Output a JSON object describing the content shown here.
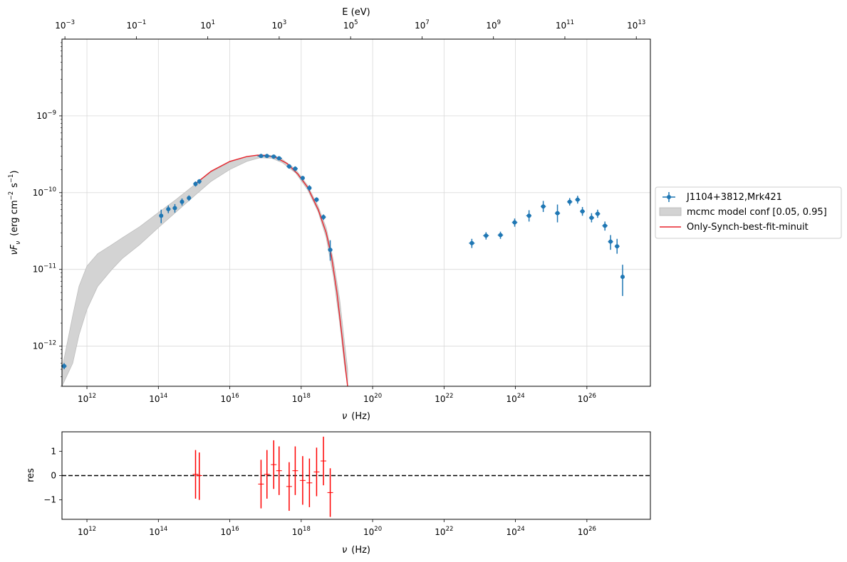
{
  "chart_data": [
    {
      "type": "scatter",
      "x_scale": "log",
      "y_scale": "log",
      "xlabel_symbol": "ν",
      "xlabel_unit": "(Hz)",
      "ylabel": "νF_ν (erg cm^-2 s^-1)",
      "ylabel_parts": {
        "nu": "ν",
        "F": "F",
        "sub": "ν",
        "open": "(erg cm",
        "m2": "−2",
        "s": "s",
        "m1": "−1",
        "close": ")"
      },
      "top_xlabel": "E (eV)",
      "xlim": [
        200000000000,
        6e+27
      ],
      "ylim": [
        3e-13,
        1e-08
      ],
      "grid": true,
      "legend_position": "outside-right",
      "x_ticks": [
        {
          "base": "10",
          "exp": "12",
          "value": 1000000000000.0
        },
        {
          "base": "10",
          "exp": "14",
          "value": 100000000000000.0
        },
        {
          "base": "10",
          "exp": "16",
          "value": 1e+16
        },
        {
          "base": "10",
          "exp": "18",
          "value": 1e+18
        },
        {
          "base": "10",
          "exp": "20",
          "value": 1e+20
        },
        {
          "base": "10",
          "exp": "22",
          "value": 1e+22
        },
        {
          "base": "10",
          "exp": "24",
          "value": 1e+24
        },
        {
          "base": "10",
          "exp": "26",
          "value": 1e+26
        }
      ],
      "y_ticks": [
        {
          "base": "10",
          "exp": "−12",
          "value": 1e-12
        },
        {
          "base": "10",
          "exp": "−11",
          "value": 1e-11
        },
        {
          "base": "10",
          "exp": "−10",
          "value": 1e-10
        },
        {
          "base": "10",
          "exp": "−9",
          "value": 1e-09
        }
      ],
      "top_ticks": [
        {
          "base": "10",
          "exp": "−3",
          "value": 0.001
        },
        {
          "base": "10",
          "exp": "−1",
          "value": 0.1
        },
        {
          "base": "10",
          "exp": "1",
          "value": 10
        },
        {
          "base": "10",
          "exp": "3",
          "value": 1000
        },
        {
          "base": "10",
          "exp": "5",
          "value": 100000
        },
        {
          "base": "10",
          "exp": "7",
          "value": 10000000
        },
        {
          "base": "10",
          "exp": "9",
          "value": 1000000000
        },
        {
          "base": "10",
          "exp": "11",
          "value": 100000000000
        },
        {
          "base": "10",
          "exp": "13",
          "value": 10000000000000
        }
      ],
      "legend": [
        {
          "label": "J1104+3812,Mrk421",
          "color": "#1f77b4",
          "kind": "errorbar"
        },
        {
          "label": "mcmc model conf [0.05, 0.95]",
          "color": "#d3d3d3",
          "kind": "band"
        },
        {
          "label": "Only-Synch-best-fit-minuit",
          "color": "#e8232b",
          "kind": "line"
        }
      ],
      "series": [
        {
          "name": "J1104+3812,Mrk421",
          "color": "#1f77b4",
          "points": [
            {
              "x": 230000000000.0,
              "y": 5.5e-13,
              "ylo": 5e-13,
              "yhi": 6e-13,
              "xlo": 190000000000.0,
              "xhi": 270000000000.0
            },
            {
              "x": 120000000000000.0,
              "y": 5e-11,
              "ylo": 4e-11,
              "yhi": 6e-11,
              "xlo": 105000000000000.0,
              "xhi": 135000000000000.0
            },
            {
              "x": 190000000000000.0,
              "y": 6.1e-11,
              "ylo": 5.4e-11,
              "yhi": 6.8e-11,
              "xlo": 165000000000000.0,
              "xhi": 220000000000000.0
            },
            {
              "x": 290000000000000.0,
              "y": 6.3e-11,
              "ylo": 5.5e-11,
              "yhi": 7.1e-11,
              "xlo": 250000000000000.0,
              "xhi": 330000000000000.0
            },
            {
              "x": 460000000000000.0,
              "y": 7.6e-11,
              "ylo": 6.8e-11,
              "yhi": 8.4e-11,
              "xlo": 400000000000000.0,
              "xhi": 520000000000000.0
            },
            {
              "x": 720000000000000.0,
              "y": 8.5e-11,
              "ylo": 7.8e-11,
              "yhi": 9.2e-11,
              "xlo": 630000000000000.0,
              "xhi": 820000000000000.0
            },
            {
              "x": 1100000000000000.0,
              "y": 1.3e-10,
              "ylo": 1.2e-10,
              "yhi": 1.4e-10,
              "xlo": 950000000000000.0,
              "xhi": 1250000000000000.0
            },
            {
              "x": 1400000000000000.0,
              "y": 1.4e-10,
              "ylo": 1.3e-10,
              "yhi": 1.5e-10,
              "xlo": 1250000000000000.0,
              "xhi": 1600000000000000.0
            },
            {
              "x": 7.5e+16,
              "y": 3e-10,
              "ylo": 2.85e-10,
              "yhi": 3.15e-10,
              "xlo": 6e+16,
              "xhi": 9e+16
            },
            {
              "x": 1.1e+17,
              "y": 3e-10,
              "ylo": 2.85e-10,
              "yhi": 3.15e-10,
              "xlo": 9e+16,
              "xhi": 1.35e+17
            },
            {
              "x": 1.7e+17,
              "y": 2.95e-10,
              "ylo": 2.8e-10,
              "yhi": 3.1e-10,
              "xlo": 1.4e+17,
              "xhi": 2.05e+17
            },
            {
              "x": 2.4e+17,
              "y": 2.8e-10,
              "ylo": 2.65e-10,
              "yhi": 2.95e-10,
              "xlo": 2e+17,
              "xhi": 2.9e+17
            },
            {
              "x": 4.6e+17,
              "y": 2.2e-10,
              "ylo": 2.05e-10,
              "yhi": 2.35e-10,
              "xlo": 3.9e+17,
              "xhi": 5.4e+17
            },
            {
              "x": 6.8e+17,
              "y": 2.05e-10,
              "ylo": 1.9e-10,
              "yhi": 2.2e-10,
              "xlo": 5.8e+17,
              "xhi": 8e+17
            },
            {
              "x": 1.1e+18,
              "y": 1.55e-10,
              "ylo": 1.45e-10,
              "yhi": 1.65e-10,
              "xlo": 9.5e+17,
              "xhi": 1.25e+18
            },
            {
              "x": 1.7e+18,
              "y": 1.15e-10,
              "ylo": 1.05e-10,
              "yhi": 1.25e-10,
              "xlo": 1.45e+18,
              "xhi": 1.95e+18
            },
            {
              "x": 2.7e+18,
              "y": 8.1e-11,
              "ylo": 7.5e-11,
              "yhi": 8.7e-11,
              "xlo": 2.3e+18,
              "xhi": 3.1e+18
            },
            {
              "x": 4.2e+18,
              "y": 4.8e-11,
              "ylo": 4.4e-11,
              "yhi": 5.2e-11,
              "xlo": 3.6e+18,
              "xhi": 4.9e+18
            },
            {
              "x": 6.5e+18,
              "y": 1.8e-11,
              "ylo": 1.3e-11,
              "yhi": 2.4e-11,
              "xlo": 5.6e+18,
              "xhi": 7.5e+18
            },
            {
              "x": 6e+22,
              "y": 2.2e-11,
              "ylo": 1.9e-11,
              "yhi": 2.5e-11,
              "xlo": 5e+22,
              "xhi": 7.2e+22
            },
            {
              "x": 1.5e+23,
              "y": 2.75e-11,
              "ylo": 2.45e-11,
              "yhi": 3.05e-11,
              "xlo": 1.25e+23,
              "xhi": 1.8e+23
            },
            {
              "x": 3.8e+23,
              "y": 2.8e-11,
              "ylo": 2.5e-11,
              "yhi": 3.1e-11,
              "xlo": 3.2e+23,
              "xhi": 4.5e+23
            },
            {
              "x": 9.5e+23,
              "y": 4.1e-11,
              "ylo": 3.6e-11,
              "yhi": 4.6e-11,
              "xlo": 8e+23,
              "xhi": 1.13e+24
            },
            {
              "x": 2.4e+24,
              "y": 5e-11,
              "ylo": 4.2e-11,
              "yhi": 5.9e-11,
              "xlo": 2e+24,
              "xhi": 2.8e+24
            },
            {
              "x": 6e+24,
              "y": 6.6e-11,
              "ylo": 5.6e-11,
              "yhi": 7.8e-11,
              "xlo": 5.1e+24,
              "xhi": 7.1e+24
            },
            {
              "x": 1.5e+25,
              "y": 5.4e-11,
              "ylo": 4.1e-11,
              "yhi": 7e-11,
              "xlo": 1.27e+25,
              "xhi": 1.77e+25
            },
            {
              "x": 3.3e+25,
              "y": 7.6e-11,
              "ylo": 6.8e-11,
              "yhi": 8.5e-11,
              "xlo": 2.8e+25,
              "xhi": 3.9e+25
            },
            {
              "x": 5.5e+25,
              "y": 8.1e-11,
              "ylo": 7.2e-11,
              "yhi": 9.1e-11,
              "xlo": 4.7e+25,
              "xhi": 6.5e+25
            },
            {
              "x": 7.5e+25,
              "y": 5.7e-11,
              "ylo": 5e-11,
              "yhi": 6.5e-11,
              "xlo": 6.4e+25,
              "xhi": 8.8e+25
            },
            {
              "x": 1.35e+26,
              "y": 4.7e-11,
              "ylo": 4.1e-11,
              "yhi": 5.4e-11,
              "xlo": 1.15e+26,
              "xhi": 1.6e+26
            },
            {
              "x": 2e+26,
              "y": 5.3e-11,
              "ylo": 4.7e-11,
              "yhi": 6e-11,
              "xlo": 1.7e+26,
              "xhi": 2.35e+26
            },
            {
              "x": 3.2e+26,
              "y": 3.7e-11,
              "ylo": 3.2e-11,
              "yhi": 4.2e-11,
              "xlo": 2.7e+26,
              "xhi": 3.8e+26
            },
            {
              "x": 4.6e+26,
              "y": 2.3e-11,
              "ylo": 1.8e-11,
              "yhi": 2.8e-11,
              "xlo": 3.9e+26,
              "xhi": 5.4e+26
            },
            {
              "x": 7e+26,
              "y": 2e-11,
              "ylo": 1.6e-11,
              "yhi": 2.5e-11,
              "xlo": 6e+26,
              "xhi": 8.2e+26
            },
            {
              "x": 1e+27,
              "y": 8e-12,
              "ylo": 4.5e-12,
              "yhi": 1.15e-11,
              "xlo": 9.5e+26,
              "xhi": 1.05e+27
            }
          ]
        },
        {
          "name": "mcmc model conf [0.05, 0.95]",
          "type": "area",
          "color": "#d3d3d3",
          "points": [
            {
              "x": 200000000000.0,
              "ylo": 3e-13,
              "yhi": 5e-13
            },
            {
              "x": 400000000000.0,
              "ylo": 6e-13,
              "yhi": 2.5e-12
            },
            {
              "x": 600000000000.0,
              "ylo": 1.4e-12,
              "yhi": 6e-12
            },
            {
              "x": 1000000000000.0,
              "ylo": 3e-12,
              "yhi": 1.1e-11
            },
            {
              "x": 2000000000000.0,
              "ylo": 6e-12,
              "yhi": 1.6e-11
            },
            {
              "x": 5000000000000.0,
              "ylo": 1e-11,
              "yhi": 2.1e-11
            },
            {
              "x": 10000000000000.0,
              "ylo": 1.4e-11,
              "yhi": 2.6e-11
            },
            {
              "x": 30000000000000.0,
              "ylo": 2.1e-11,
              "yhi": 3.6e-11
            },
            {
              "x": 100000000000000.0,
              "ylo": 3.5e-11,
              "yhi": 5.5e-11
            },
            {
              "x": 300000000000000.0,
              "ylo": 5.5e-11,
              "yhi": 8e-11
            },
            {
              "x": 1000000000000000.0,
              "ylo": 9e-11,
              "yhi": 1.25e-10
            },
            {
              "x": 3000000000000000.0,
              "ylo": 1.4e-10,
              "yhi": 1.85e-10
            },
            {
              "x": 1e+16,
              "ylo": 2e-10,
              "yhi": 2.5e-10
            },
            {
              "x": 3e+16,
              "ylo": 2.55e-10,
              "yhi": 2.95e-10
            },
            {
              "x": 7e+16,
              "ylo": 2.85e-10,
              "yhi": 3.1e-10
            },
            {
              "x": 1.5e+17,
              "ylo": 2.8e-10,
              "yhi": 3.05e-10
            },
            {
              "x": 3e+17,
              "ylo": 2.45e-10,
              "yhi": 2.7e-10
            },
            {
              "x": 7e+17,
              "ylo": 1.8e-10,
              "yhi": 2e-10
            },
            {
              "x": 1.5e+18,
              "ylo": 1.1e-10,
              "yhi": 1.25e-10
            },
            {
              "x": 3e+18,
              "ylo": 5.6e-11,
              "yhi": 6.6e-11
            },
            {
              "x": 5e+18,
              "ylo": 2.6e-11,
              "yhi": 3.5e-11
            },
            {
              "x": 8e+18,
              "ylo": 8e-12,
              "yhi": 1.3e-11
            },
            {
              "x": 1.2e+19,
              "ylo": 2e-12,
              "yhi": 4e-12
            },
            {
              "x": 1.6e+19,
              "ylo": 6e-13,
              "yhi": 1.2e-12
            },
            {
              "x": 2e+19,
              "ylo": 3e-13,
              "yhi": 5e-13
            }
          ]
        },
        {
          "name": "Only-Synch-best-fit-minuit",
          "type": "line",
          "color": "#e8232b",
          "points": [
            {
              "x": 1200000000000000.0,
              "y": 1.35e-10
            },
            {
              "x": 3000000000000000.0,
              "y": 1.9e-10
            },
            {
              "x": 1e+16,
              "y": 2.55e-10
            },
            {
              "x": 3e+16,
              "y": 2.95e-10
            },
            {
              "x": 6e+16,
              "y": 3.08e-10
            },
            {
              "x": 1e+17,
              "y": 3.05e-10
            },
            {
              "x": 2e+17,
              "y": 2.85e-10
            },
            {
              "x": 4e+17,
              "y": 2.4e-10
            },
            {
              "x": 8e+17,
              "y": 1.75e-10
            },
            {
              "x": 1.5e+18,
              "y": 1.18e-10
            },
            {
              "x": 3e+18,
              "y": 6e-11
            },
            {
              "x": 5e+18,
              "y": 3e-11
            },
            {
              "x": 7e+18,
              "y": 1.5e-11
            },
            {
              "x": 1e+19,
              "y": 5e-12
            },
            {
              "x": 1.4e+19,
              "y": 1.3e-12
            },
            {
              "x": 1.8e+19,
              "y": 4.5e-13
            },
            {
              "x": 2e+19,
              "y": 3e-13
            }
          ]
        }
      ]
    },
    {
      "type": "scatter",
      "x_scale": "log",
      "xlabel_symbol": "ν",
      "xlabel_unit": "(Hz)",
      "ylabel": "res",
      "xlim": [
        200000000000,
        6e+27
      ],
      "ylim": [
        -1.8,
        1.8
      ],
      "grid": false,
      "x_ticks": [
        {
          "base": "10",
          "exp": "12",
          "value": 1000000000000.0
        },
        {
          "base": "10",
          "exp": "14",
          "value": 100000000000000.0
        },
        {
          "base": "10",
          "exp": "16",
          "value": 1e+16
        },
        {
          "base": "10",
          "exp": "18",
          "value": 1e+18
        },
        {
          "base": "10",
          "exp": "20",
          "value": 1e+20
        },
        {
          "base": "10",
          "exp": "22",
          "value": 1e+22
        },
        {
          "base": "10",
          "exp": "24",
          "value": 1e+24
        },
        {
          "base": "10",
          "exp": "26",
          "value": 1e+26
        }
      ],
      "y_ticks": [
        {
          "label": "1",
          "value": 1
        },
        {
          "label": "0",
          "value": 0
        },
        {
          "label": "−1",
          "value": -1
        }
      ],
      "reference_line": {
        "y": 0,
        "color": "#000000",
        "style": "dashed"
      },
      "series": [
        {
          "name": "residuals",
          "color": "#ff0000",
          "points": [
            {
              "x": 1100000000000000.0,
              "y": 0.05,
              "ylo": -0.95,
              "yhi": 1.05
            },
            {
              "x": 1400000000000000.0,
              "y": 0.0,
              "ylo": -1.0,
              "yhi": 0.95
            },
            {
              "x": 7.5e+16,
              "y": -0.35,
              "ylo": -1.35,
              "yhi": 0.65
            },
            {
              "x": 1.1e+17,
              "y": 0.05,
              "ylo": -0.95,
              "yhi": 1.05
            },
            {
              "x": 1.7e+17,
              "y": 0.45,
              "ylo": -0.55,
              "yhi": 1.45
            },
            {
              "x": 2.4e+17,
              "y": 0.2,
              "ylo": -0.8,
              "yhi": 1.2
            },
            {
              "x": 4.6e+17,
              "y": -0.45,
              "ylo": -1.45,
              "yhi": 0.55
            },
            {
              "x": 6.8e+17,
              "y": 0.2,
              "ylo": -0.8,
              "yhi": 1.2
            },
            {
              "x": 1.1e+18,
              "y": -0.2,
              "ylo": -1.2,
              "yhi": 0.8
            },
            {
              "x": 1.7e+18,
              "y": -0.3,
              "ylo": -1.3,
              "yhi": 0.7
            },
            {
              "x": 2.7e+18,
              "y": 0.15,
              "ylo": -0.85,
              "yhi": 1.15
            },
            {
              "x": 4.2e+18,
              "y": 0.6,
              "ylo": -0.4,
              "yhi": 1.6
            },
            {
              "x": 6.5e+18,
              "y": -0.7,
              "ylo": -1.7,
              "yhi": 0.3
            }
          ]
        }
      ]
    }
  ]
}
